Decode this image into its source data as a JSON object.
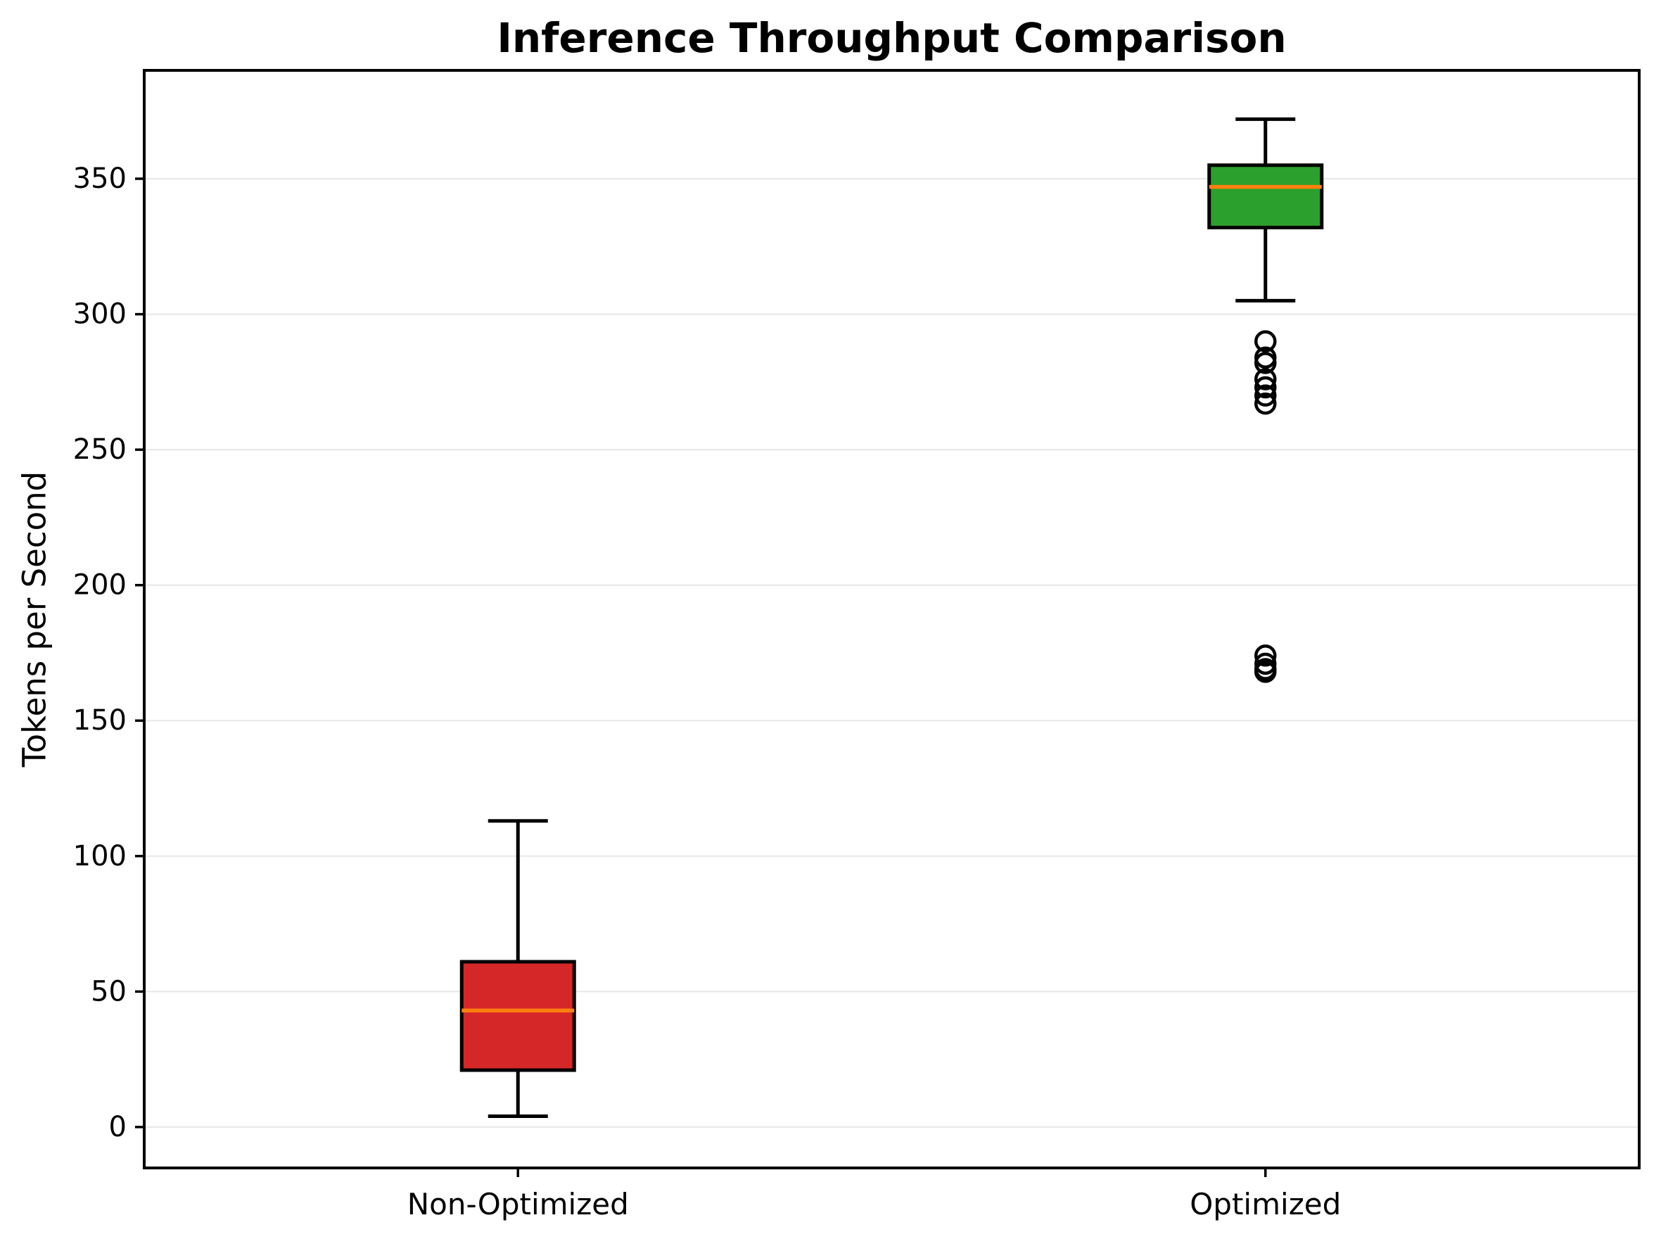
{
  "chart_data": {
    "type": "boxplot",
    "title": "Inference Throughput Comparison",
    "ylabel": "Tokens per Second",
    "xlabel": "",
    "categories": [
      "Non-Optimized",
      "Optimized"
    ],
    "series": [
      {
        "name": "Non-Optimized",
        "whisker_low": 4,
        "q1": 21,
        "median": 43,
        "q3": 61,
        "whisker_high": 113,
        "outliers": [],
        "box_color": "#d62728"
      },
      {
        "name": "Optimized",
        "whisker_low": 305,
        "q1": 332,
        "median": 347,
        "q3": 355,
        "whisker_high": 372,
        "outliers": [
          290,
          284,
          282,
          276,
          273,
          270,
          267,
          174,
          171,
          169,
          168
        ],
        "box_color": "#2ca02c"
      }
    ],
    "yticks": [
      0,
      50,
      100,
      150,
      200,
      250,
      300,
      350
    ],
    "ylim": [
      -15.1,
      390
    ],
    "median_color": "#ff7f0e",
    "box_edge_color": "#000000",
    "grid": true,
    "grid_color": "#e8e8e8",
    "legend_position": "none"
  }
}
